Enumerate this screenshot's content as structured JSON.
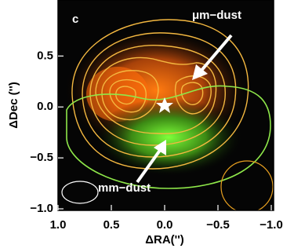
{
  "chart_data": {
    "type": "image",
    "panel_label": "c",
    "xlabel": "ΔRA('')",
    "ylabel": "ΔDec ('')",
    "xlim": [
      1.0,
      -1.0
    ],
    "ylim": [
      -1.0,
      1.05
    ],
    "xticks": [
      {
        "value": 1.0,
        "label": "1.0"
      },
      0.5,
      {
        "value": 0,
        "label": "0.0"
      },
      {
        "value": -0.5,
        "label": "−0.5"
      },
      {
        "value": -1.0,
        "label": "−1.0"
      }
    ],
    "yticks": [
      0.5,
      {
        "value": 0,
        "label": "0.0"
      },
      {
        "value": -0.5,
        "label": "−0.5"
      },
      {
        "value": -1.0,
        "label": "−1.0"
      }
    ],
    "annotations": [
      "μm−dust",
      "mm−dust"
    ]
  }
}
